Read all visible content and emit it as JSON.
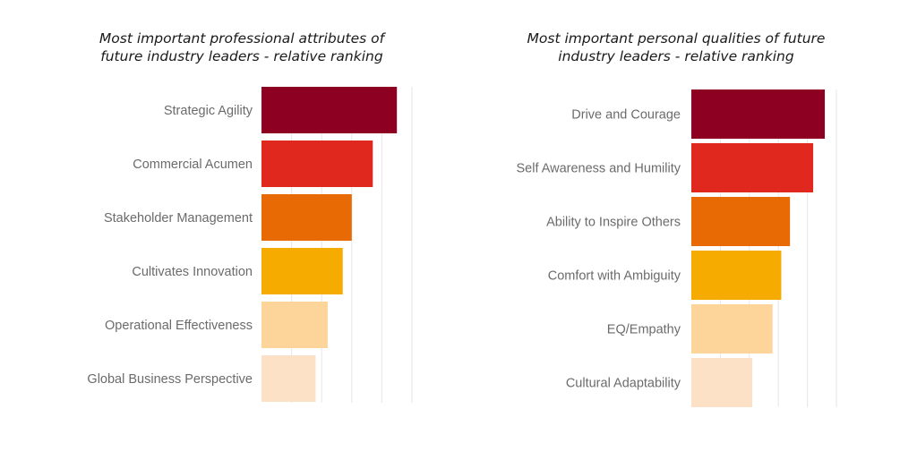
{
  "chart_data": [
    {
      "type": "bar",
      "orientation": "horizontal",
      "title_lines": [
        "Most important professional attributes of",
        "future industry leaders - relative ranking"
      ],
      "categories": [
        "Strategic Agility",
        "Commercial Acumen",
        "Stakeholder Management",
        "Cultivates Innovation",
        "Operational Effectiveness",
        "Global Business Perspective"
      ],
      "values": [
        4.5,
        3.7,
        3.0,
        2.7,
        2.2,
        1.8
      ],
      "colors": [
        "#8e0022",
        "#e1281f",
        "#e86a05",
        "#f5ab00",
        "#fdd49a",
        "#fde1c6"
      ],
      "xlim": [
        0,
        5
      ],
      "grid": true,
      "xlabel": "",
      "ylabel": ""
    },
    {
      "type": "bar",
      "orientation": "horizontal",
      "title_lines": [
        "Most important personal qualities of future",
        "industry leaders - relative ranking"
      ],
      "categories": [
        "Drive and Courage",
        "Self Awareness and Humility",
        "Ability to Inspire Others",
        "Comfort with Ambiguity",
        "EQ/Empathy",
        "Cultural Adaptability"
      ],
      "values": [
        4.6,
        4.2,
        3.4,
        3.1,
        2.8,
        2.1
      ],
      "colors": [
        "#8e0022",
        "#e1281f",
        "#e86a05",
        "#f5ab00",
        "#fdd49a",
        "#fde1c6"
      ],
      "xlim": [
        0,
        5
      ],
      "grid": true,
      "xlabel": "",
      "ylabel": ""
    }
  ]
}
